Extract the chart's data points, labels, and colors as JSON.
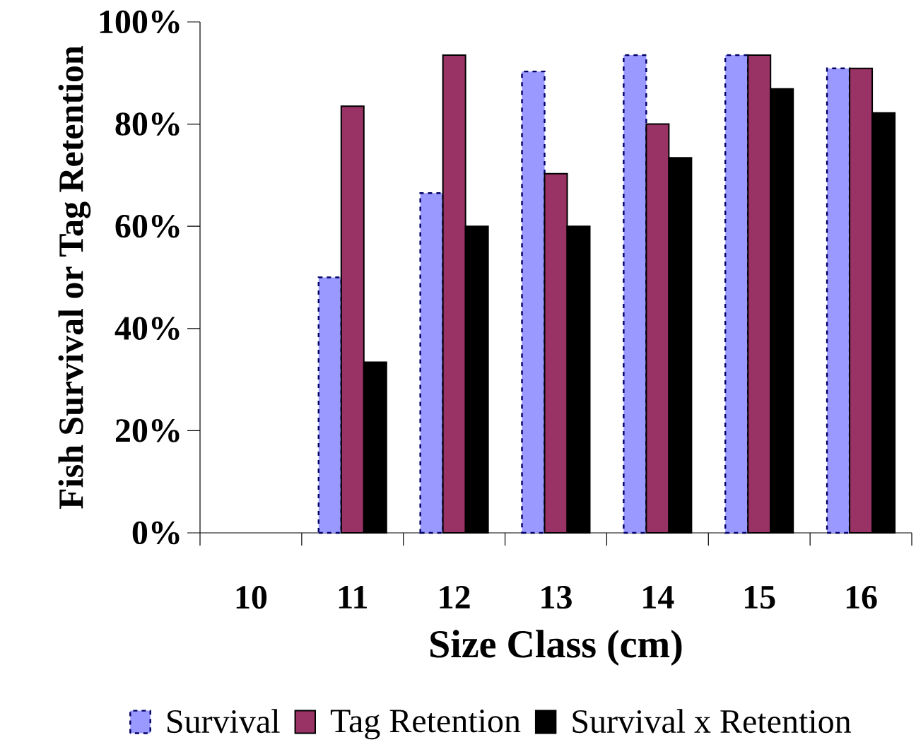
{
  "chart_data": {
    "type": "bar",
    "xlabel": "Size Class (cm)",
    "ylabel": "Fish Survival or Tag Retention",
    "categories": [
      "10",
      "11",
      "12",
      "13",
      "14",
      "15",
      "16"
    ],
    "series": [
      {
        "name": "Survival",
        "color": "#9999ff",
        "line_style": "dashed",
        "values": [
          null,
          50,
          66.5,
          90.3,
          93.5,
          93.5,
          90.9
        ]
      },
      {
        "name": "Tag Retention",
        "color": "#993366",
        "values": [
          null,
          83.5,
          93.5,
          70.3,
          80,
          93.5,
          90.9
        ]
      },
      {
        "name": "Survival x Retention",
        "color": "#000000",
        "values": [
          null,
          33.4,
          60,
          60,
          73.4,
          86.9,
          82.2
        ]
      }
    ],
    "ylim": [
      0,
      100
    ],
    "yticks": [
      {
        "value": 0,
        "label": "0%"
      },
      {
        "value": 20,
        "label": "20%"
      },
      {
        "value": 40,
        "label": "40%"
      },
      {
        "value": 60,
        "label": "60%"
      },
      {
        "value": 80,
        "label": "80%"
      },
      {
        "value": 100,
        "label": "100%"
      }
    ],
    "legend": "bottom",
    "grid": false
  }
}
